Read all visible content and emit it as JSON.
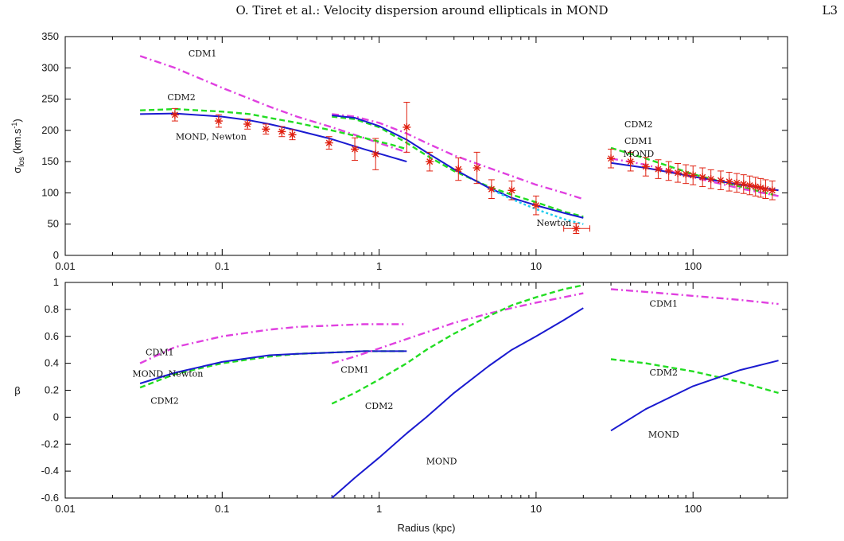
{
  "header": {
    "title": "O. Tiret et al.: Velocity dispersion around ellipticals in MOND",
    "page": "L3"
  },
  "colors": {
    "CDM1": "#e040e0",
    "CDM2": "#22dd22",
    "MOND": "#1a1ad0",
    "Newton": "#22ccee",
    "data": "#e02010",
    "axis": "#000000"
  },
  "chart_data": [
    {
      "id": "top",
      "type": "line",
      "xscale": "log",
      "xlim": [
        0.01,
        400
      ],
      "ylim": [
        0,
        350
      ],
      "xticks": [
        0.01,
        0.1,
        1,
        10,
        100
      ],
      "xticklabels": [
        "0.01",
        "0.1",
        "1",
        "10",
        "100"
      ],
      "yticks": [
        0,
        50,
        100,
        150,
        200,
        250,
        300,
        350
      ],
      "yticklabels": [
        "0",
        "50",
        "100",
        "150",
        "200",
        "250",
        "300",
        "350"
      ],
      "ylabel_main": "σ",
      "ylabel_sub": "los",
      "ylabel_rest": " (km.s",
      "ylabel_sup": "-1",
      "ylabel_end": ")",
      "xlabel": "",
      "series": [
        {
          "name": "CDM1",
          "style": "dashdot",
          "color": "CDM1",
          "x": [
            0.03,
            0.05,
            0.1,
            0.2,
            0.3,
            0.5,
            0.8,
            1.2,
            1.5
          ],
          "y": [
            319,
            300,
            268,
            238,
            222,
            205,
            188,
            173,
            165
          ]
        },
        {
          "name": "CDM2",
          "style": "dashed",
          "color": "CDM2",
          "x": [
            0.03,
            0.05,
            0.1,
            0.15,
            0.2,
            0.3,
            0.5,
            0.8,
            1.2,
            1.5
          ],
          "y": [
            232,
            234,
            230,
            226,
            220,
            212,
            200,
            188,
            177,
            170
          ]
        },
        {
          "name": "MOND, Newton",
          "style": "solid",
          "color": "MOND",
          "x": [
            0.03,
            0.05,
            0.1,
            0.15,
            0.2,
            0.3,
            0.5,
            0.8,
            1.2,
            1.5
          ],
          "y": [
            226,
            227,
            222,
            216,
            210,
            200,
            186,
            170,
            157,
            150
          ]
        },
        {
          "name": "CDM1",
          "style": "dashdot",
          "color": "CDM1",
          "x": [
            0.5,
            0.7,
            1,
            1.5,
            2,
            3,
            5,
            7,
            10,
            15,
            20
          ],
          "y": [
            226,
            222,
            212,
            195,
            180,
            160,
            140,
            127,
            113,
            100,
            90
          ]
        },
        {
          "name": "CDM2",
          "style": "dashed",
          "color": "CDM2",
          "x": [
            0.5,
            0.7,
            1,
            1.5,
            2,
            3,
            5,
            7,
            10,
            15,
            20
          ],
          "y": [
            222,
            218,
            205,
            180,
            160,
            135,
            110,
            97,
            85,
            70,
            62
          ]
        },
        {
          "name": "MOND",
          "style": "solid",
          "color": "MOND",
          "x": [
            0.5,
            0.7,
            1,
            1.5,
            2,
            3,
            5,
            7,
            10,
            15,
            20
          ],
          "y": [
            224,
            220,
            207,
            185,
            165,
            138,
            108,
            92,
            80,
            68,
            60
          ]
        },
        {
          "name": "Newton",
          "style": "dotted",
          "color": "Newton",
          "x": [
            5,
            7,
            10,
            15,
            20
          ],
          "y": [
            107,
            90,
            74,
            58,
            50
          ]
        },
        {
          "name": "CDM2",
          "style": "dashed",
          "color": "CDM2",
          "x": [
            30,
            50,
            100,
            200,
            350
          ],
          "y": [
            172,
            155,
            130,
            110,
            95
          ]
        },
        {
          "name": "CDM1",
          "style": "dashdot",
          "color": "CDM1",
          "x": [
            30,
            50,
            100,
            200,
            350
          ],
          "y": [
            155,
            145,
            125,
            107,
            95
          ]
        },
        {
          "name": "MOND",
          "style": "solid",
          "color": "MOND",
          "x": [
            30,
            50,
            100,
            200,
            350
          ],
          "y": [
            148,
            140,
            126,
            113,
            104
          ]
        }
      ],
      "points": {
        "x": [
          0.05,
          0.095,
          0.145,
          0.19,
          0.24,
          0.28,
          0.48,
          0.7,
          0.95,
          1.5,
          2.1,
          3.2,
          4.2,
          5.2,
          7,
          10,
          18,
          30,
          40,
          50,
          60,
          70,
          80,
          90,
          100,
          115,
          130,
          150,
          170,
          190,
          210,
          230,
          250,
          270,
          290,
          320
        ],
        "y": [
          225,
          215,
          210,
          202,
          198,
          193,
          180,
          170,
          162,
          205,
          150,
          138,
          140,
          106,
          104,
          80,
          43,
          155,
          150,
          142,
          138,
          135,
          132,
          130,
          128,
          125,
          122,
          120,
          118,
          116,
          114,
          112,
          110,
          108,
          106,
          104
        ],
        "yerr": [
          10,
          10,
          8,
          8,
          8,
          8,
          10,
          18,
          25,
          40,
          15,
          18,
          25,
          15,
          15,
          15,
          8,
          15,
          15,
          15,
          15,
          15,
          15,
          15,
          15,
          15,
          15,
          15,
          15,
          15,
          15,
          15,
          15,
          15,
          15,
          15
        ],
        "xerr": [
          [
            0,
            0
          ],
          [
            0,
            0
          ],
          [
            0,
            0
          ],
          [
            0,
            0
          ],
          [
            0,
            0
          ],
          [
            0,
            0
          ],
          [
            0,
            0
          ],
          [
            0,
            0
          ],
          [
            0,
            0
          ],
          [
            0,
            0
          ],
          [
            0,
            0
          ],
          [
            0,
            0
          ],
          [
            0,
            0
          ],
          [
            0,
            0
          ],
          [
            0,
            0
          ],
          [
            0,
            0
          ],
          [
            3,
            4
          ],
          [
            0,
            0
          ],
          [
            0,
            0
          ],
          [
            0,
            0
          ],
          [
            0,
            0
          ],
          [
            0,
            0
          ],
          [
            0,
            0
          ],
          [
            0,
            0
          ],
          [
            0,
            0
          ],
          [
            0,
            0
          ],
          [
            0,
            0
          ],
          [
            0,
            0
          ],
          [
            0,
            0
          ],
          [
            0,
            0
          ],
          [
            0,
            0
          ],
          [
            0,
            0
          ],
          [
            0,
            0
          ],
          [
            0,
            0
          ],
          [
            0,
            0
          ],
          [
            0,
            0
          ]
        ]
      },
      "annotations": [
        {
          "text": "CDM1",
          "x": 0.075,
          "y": 318
        },
        {
          "text": "CDM2",
          "x": 0.055,
          "y": 248
        },
        {
          "text": "MOND, Newton",
          "x": 0.085,
          "y": 185
        },
        {
          "text": "CDM2",
          "x": 45,
          "y": 205
        },
        {
          "text": "CDM1",
          "x": 45,
          "y": 178
        },
        {
          "text": "MOND",
          "x": 45,
          "y": 158
        },
        {
          "text": "Newton",
          "x": 13,
          "y": 47
        }
      ]
    },
    {
      "id": "bottom",
      "type": "line",
      "xscale": "log",
      "xlim": [
        0.01,
        400
      ],
      "ylim": [
        -0.6,
        1
      ],
      "xticks": [
        0.01,
        0.1,
        1,
        10,
        100
      ],
      "xticklabels": [
        "0.01",
        "0.1",
        "1",
        "10",
        "100"
      ],
      "yticks": [
        -0.6,
        -0.4,
        -0.2,
        0,
        0.2,
        0.4,
        0.6,
        0.8,
        1
      ],
      "yticklabels": [
        "-0.6",
        "-0.4",
        "-0.2",
        "0",
        "0.2",
        "0.4",
        "0.6",
        "0.8",
        "1"
      ],
      "ylabel": "β",
      "xlabel": "Radius (kpc)",
      "series": [
        {
          "name": "CDM1",
          "style": "dashdot",
          "color": "CDM1",
          "x": [
            0.03,
            0.05,
            0.1,
            0.2,
            0.3,
            0.5,
            0.8,
            1,
            1.5
          ],
          "y": [
            0.4,
            0.52,
            0.6,
            0.65,
            0.67,
            0.68,
            0.69,
            0.69,
            0.69
          ]
        },
        {
          "name": "CDM2",
          "style": "dashed",
          "color": "CDM2",
          "x": [
            0.03,
            0.05,
            0.1,
            0.2,
            0.3,
            0.5,
            0.8,
            1,
            1.5
          ],
          "y": [
            0.22,
            0.32,
            0.4,
            0.45,
            0.47,
            0.48,
            0.49,
            0.49,
            0.49
          ]
        },
        {
          "name": "MOND, Newton",
          "style": "solid",
          "color": "MOND",
          "x": [
            0.03,
            0.05,
            0.1,
            0.2,
            0.3,
            0.5,
            0.8,
            1,
            1.5
          ],
          "y": [
            0.25,
            0.33,
            0.41,
            0.46,
            0.47,
            0.48,
            0.49,
            0.49,
            0.49
          ]
        },
        {
          "name": "CDM1",
          "style": "dashdot",
          "color": "CDM1",
          "x": [
            0.5,
            0.7,
            1,
            1.5,
            2,
            3,
            5,
            7,
            10,
            15,
            20
          ],
          "y": [
            0.4,
            0.45,
            0.51,
            0.58,
            0.63,
            0.7,
            0.77,
            0.81,
            0.85,
            0.89,
            0.92
          ]
        },
        {
          "name": "CDM2",
          "style": "dashed",
          "color": "CDM2",
          "x": [
            0.5,
            0.7,
            1,
            1.5,
            2,
            3,
            5,
            7,
            10,
            15,
            20
          ],
          "y": [
            0.1,
            0.18,
            0.28,
            0.4,
            0.5,
            0.62,
            0.75,
            0.83,
            0.89,
            0.95,
            0.98
          ]
        },
        {
          "name": "MOND",
          "style": "solid",
          "color": "MOND",
          "x": [
            0.5,
            0.7,
            1,
            1.5,
            2,
            3,
            5,
            7,
            10,
            15,
            20
          ],
          "y": [
            -0.6,
            -0.45,
            -0.3,
            -0.12,
            0.0,
            0.18,
            0.38,
            0.5,
            0.6,
            0.72,
            0.81
          ]
        },
        {
          "name": "CDM1",
          "style": "dashdot",
          "color": "CDM1",
          "x": [
            30,
            50,
            100,
            200,
            350
          ],
          "y": [
            0.95,
            0.93,
            0.9,
            0.87,
            0.84
          ]
        },
        {
          "name": "CDM2",
          "style": "dashed",
          "color": "CDM2",
          "x": [
            30,
            50,
            100,
            200,
            350
          ],
          "y": [
            0.43,
            0.4,
            0.34,
            0.26,
            0.18
          ]
        },
        {
          "name": "MOND",
          "style": "solid",
          "color": "MOND",
          "x": [
            30,
            50,
            100,
            200,
            350
          ],
          "y": [
            -0.1,
            0.06,
            0.23,
            0.35,
            0.42
          ]
        }
      ],
      "annotations": [
        {
          "text": "CDM1",
          "x": 0.04,
          "y": 0.46
        },
        {
          "text": "MOND, Newton",
          "x": 0.045,
          "y": 0.3
        },
        {
          "text": "CDM2",
          "x": 0.043,
          "y": 0.1
        },
        {
          "text": "CDM1",
          "x": 0.7,
          "y": 0.33
        },
        {
          "text": "CDM2",
          "x": 1.0,
          "y": 0.06
        },
        {
          "text": "MOND",
          "x": 2.5,
          "y": -0.35
        },
        {
          "text": "CDM1",
          "x": 65,
          "y": 0.82
        },
        {
          "text": "CDM2",
          "x": 65,
          "y": 0.31
        },
        {
          "text": "MOND",
          "x": 65,
          "y": -0.15
        }
      ]
    }
  ]
}
